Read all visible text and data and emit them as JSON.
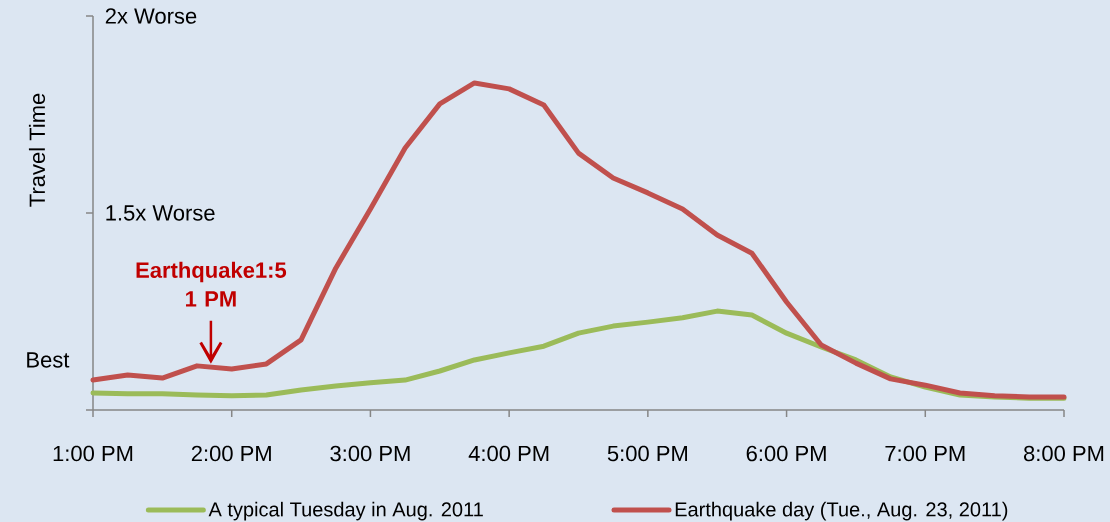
{
  "chart_data": {
    "type": "line",
    "ylabel": "Travel Time",
    "x": [
      13,
      13.25,
      13.5,
      13.75,
      14,
      14.25,
      14.5,
      14.75,
      15,
      15.25,
      15.5,
      15.75,
      16,
      16.25,
      16.5,
      16.75,
      17,
      17.25,
      17.5,
      17.75,
      18,
      18.25,
      18.5,
      18.75,
      19,
      19.25,
      19.5,
      19.75,
      20
    ],
    "series": [
      {
        "name": "A typical Tuesday in Aug. 2011",
        "color": "#9bbb59",
        "values": [
          1.043,
          1.041,
          1.041,
          1.038,
          1.036,
          1.038,
          1.051,
          1.061,
          1.069,
          1.076,
          1.099,
          1.127,
          1.145,
          1.162,
          1.195,
          1.213,
          1.223,
          1.234,
          1.251,
          1.241,
          1.195,
          1.16,
          1.127,
          1.084,
          1.058,
          1.038,
          1.033,
          1.03,
          1.03
        ]
      },
      {
        "name": "Earthquake day (Tue., Aug. 23, 2011)",
        "color": "#c0504d",
        "values": [
          1.076,
          1.089,
          1.081,
          1.112,
          1.104,
          1.117,
          1.178,
          1.36,
          1.51,
          1.665,
          1.777,
          1.83,
          1.815,
          1.774,
          1.652,
          1.589,
          1.551,
          1.51,
          1.444,
          1.398,
          1.274,
          1.165,
          1.119,
          1.079,
          1.063,
          1.043,
          1.036,
          1.033,
          1.033
        ]
      }
    ],
    "xlim": [
      13,
      20
    ],
    "xticks": [
      {
        "value": 13,
        "label": "1:00 PM"
      },
      {
        "value": 14,
        "label": "2:00 PM"
      },
      {
        "value": 15,
        "label": "3:00 PM"
      },
      {
        "value": 16,
        "label": "4:00 PM"
      },
      {
        "value": 17,
        "label": "5:00 PM"
      },
      {
        "value": 18,
        "label": "6:00 PM"
      },
      {
        "value": 19,
        "label": "7:00 PM"
      },
      {
        "value": 20,
        "label": "8:00 PM"
      }
    ],
    "ylim": [
      1,
      2
    ],
    "yticks": [
      {
        "value": 1,
        "label": null
      },
      {
        "value": 1.5,
        "label": "1.5x Worse"
      },
      {
        "value": 2,
        "label": "2x Worse"
      }
    ],
    "annotations": [
      "Best",
      {
        "text": "Earthquake1:5 1 PM",
        "x": 13.85,
        "y": 1.11
      }
    ],
    "grid": false,
    "legend": "bottom",
    "marker": "none",
    "line_style": "solid"
  }
}
